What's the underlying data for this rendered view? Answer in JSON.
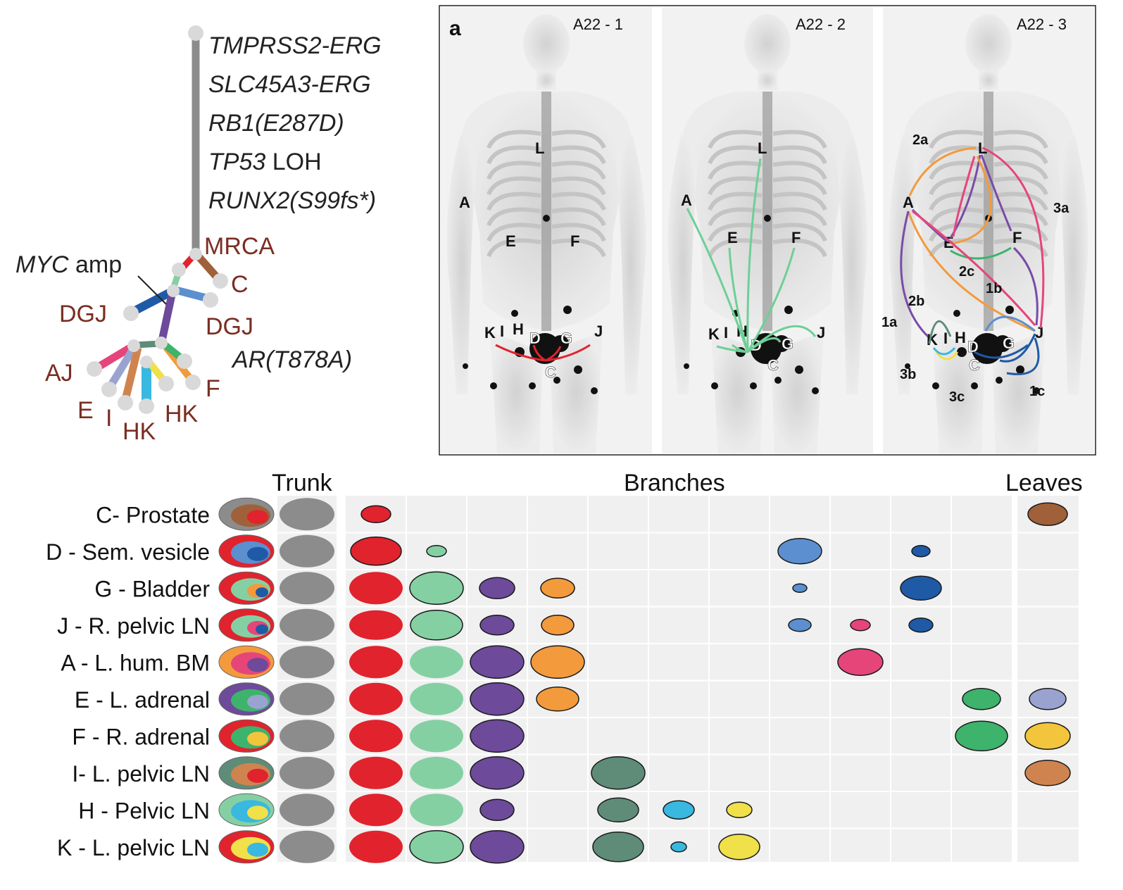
{
  "tree": {
    "trunk_mutations": [
      "TMPRSS2-ERG",
      "SLC45A3-ERG",
      "RB1(E287D)",
      "TP53",
      "RUNX2(S99fs*)"
    ],
    "tp53_suffix": " LOH",
    "node_labels": {
      "mrca": "MRCA",
      "c": "C",
      "myc_gene": "MYC",
      "myc_suffix": " amp",
      "dgj_left": "DGJ",
      "dgj_right": "DGJ",
      "ar": "AR(T878A)",
      "aj": "AJ",
      "e": "E",
      "i": "I",
      "hk_low": "HK",
      "hk_right": "HK",
      "f": "F"
    },
    "colors": {
      "trunk": "#8c8c8c",
      "node": "#d9d9d9",
      "label": "#7a2e22"
    }
  },
  "scan": {
    "panel_letter": "a",
    "panels": [
      {
        "title": "A22 - 1",
        "sites": [
          "L",
          "A",
          "E",
          "F",
          "K",
          "I",
          "H",
          "D",
          "G",
          "J",
          "C"
        ]
      },
      {
        "title": "A22 - 2",
        "sites": [
          "L",
          "A",
          "E",
          "F",
          "K",
          "I",
          "H",
          "D",
          "G",
          "J",
          "C"
        ]
      },
      {
        "title": "A22 - 3",
        "sites": [
          "L",
          "A",
          "E",
          "F",
          "K",
          "I",
          "H",
          "D",
          "G",
          "J",
          "C"
        ],
        "route_labels": [
          "2a",
          "3a",
          "2c",
          "1b",
          "2b",
          "1a",
          "3b",
          "3c",
          "1c"
        ]
      }
    ],
    "arrow_colors": {
      "red": "#e0232d",
      "green": "#6fcf97",
      "orange": "#f39a3c",
      "pink": "#e6457a",
      "purple": "#7a4ba8",
      "blue": "#5b8fd0",
      "darkblue": "#1f5aa6",
      "teal": "#5e8c78",
      "yellow": "#f0e04a",
      "cyan": "#39b8e0",
      "greenstrong": "#3db36b"
    }
  },
  "matrix": {
    "section_labels": {
      "trunk": "Trunk",
      "branches": "Branches",
      "leaves": "Leaves"
    },
    "rows": [
      "C- Prostate",
      "D - Sem. vesicle",
      "G - Bladder",
      "J - R. pelvic LN",
      "A - L. hum. BM",
      "E - L. adrenal",
      "F - R. adrenal",
      "I- L. pelvic LN",
      "H - Pelvic LN",
      "K - L. pelvic LN"
    ],
    "clone_colors": [
      "#e0232d",
      "#85d0a3",
      "#6d4a9a",
      "#f39a3c",
      "#5e8c78",
      "#39b8e0",
      "#f0e04a",
      "#5b8fd0",
      "#e6457a",
      "#1f5aa6",
      "#3db36b",
      "#9aa3d0",
      "#f2c53d",
      "#a0603a",
      "#cf8450"
    ],
    "trunk_color": "#8c8c8c"
  }
}
